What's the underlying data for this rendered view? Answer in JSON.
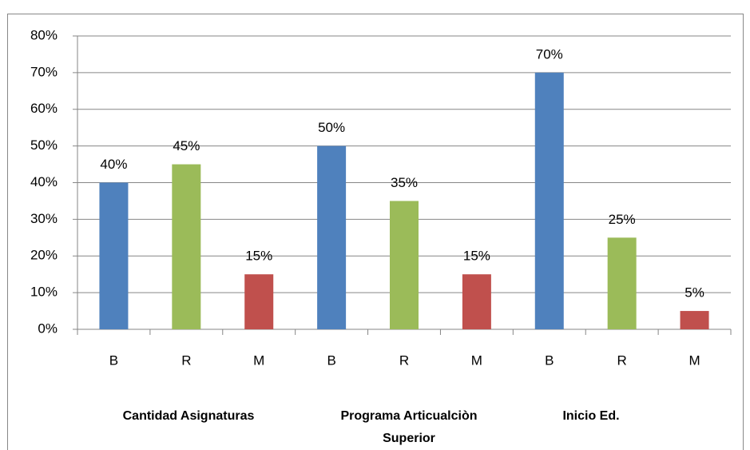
{
  "chart_data": {
    "type": "bar",
    "categories": [
      "B",
      "R",
      "M",
      "B",
      "R",
      "M",
      "B",
      "R",
      "M"
    ],
    "groups": [
      "Cantidad Asignaturas",
      "Programa Articualciòn Superior",
      "Inicio Ed."
    ],
    "values": [
      40,
      45,
      15,
      50,
      35,
      15,
      70,
      25,
      5
    ],
    "value_labels": [
      "40%",
      "45%",
      "15%",
      "50%",
      "35%",
      "15%",
      "70%",
      "25%",
      "5%"
    ],
    "colors": [
      "#4f81bd",
      "#9bbb59",
      "#c0504d",
      "#4f81bd",
      "#9bbb59",
      "#c0504d",
      "#4f81bd",
      "#9bbb59",
      "#c0504d"
    ],
    "ylim": [
      0,
      80
    ],
    "yticks": [
      {
        "value": 0,
        "label": "0%"
      },
      {
        "value": 10,
        "label": "10%"
      },
      {
        "value": 20,
        "label": "20%"
      },
      {
        "value": 30,
        "label": "30%"
      },
      {
        "value": 40,
        "label": "40%"
      },
      {
        "value": 50,
        "label": "50%"
      },
      {
        "value": 60,
        "label": "60%"
      },
      {
        "value": 70,
        "label": "70%"
      },
      {
        "value": 80,
        "label": "80%"
      }
    ],
    "grid": true
  }
}
